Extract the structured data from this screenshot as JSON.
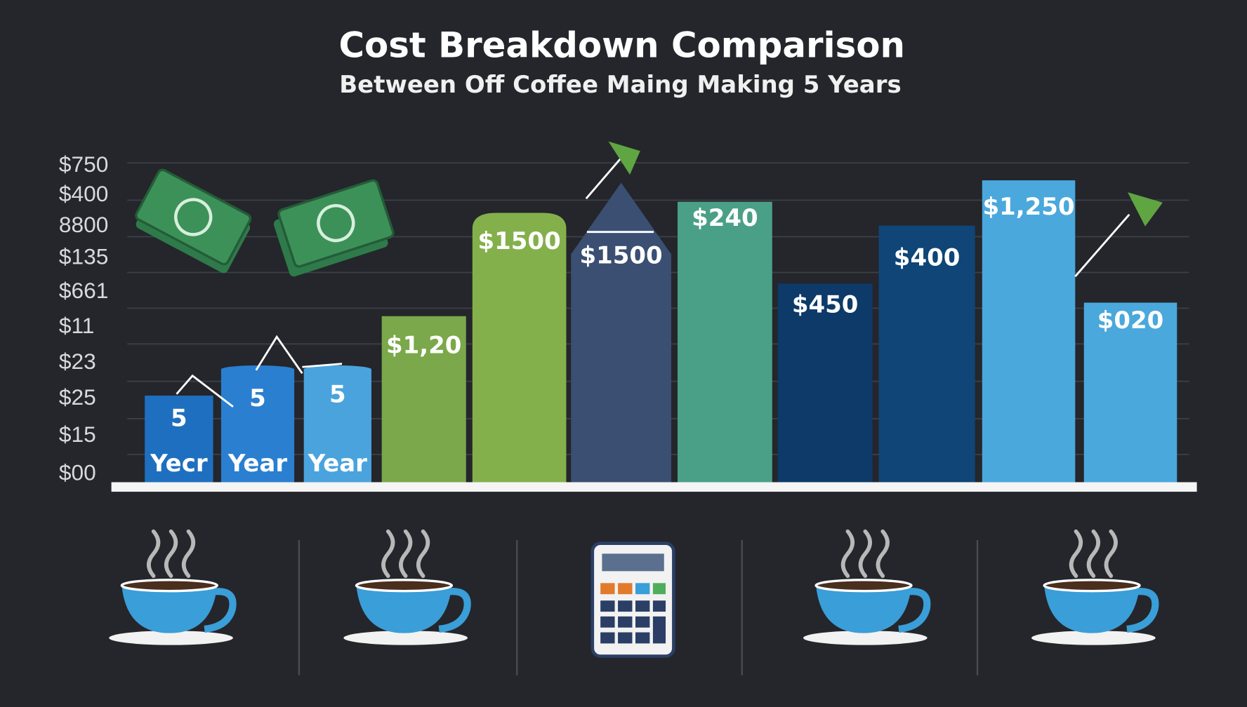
{
  "header": {
    "title": "Cost Breakdown Comparison",
    "subtitle": "Between Off Coffee Maing Making 5 Years"
  },
  "y_axis_labels": [
    "$750",
    "$400",
    "8800",
    "$135",
    "$661",
    "$11",
    "$23",
    "$25",
    "$15",
    "$00"
  ],
  "bars": [
    {
      "label": "5",
      "sublabel": "Yecr"
    },
    {
      "label": "5",
      "sublabel": "Year"
    },
    {
      "label": "5",
      "sublabel": "Year"
    },
    {
      "label": "$1,20"
    },
    {
      "label": "$1500"
    },
    {
      "label": "$1500"
    },
    {
      "label": "$240"
    },
    {
      "label": "$450"
    },
    {
      "label": "$400"
    },
    {
      "label": "$1,250"
    },
    {
      "label": "$020"
    }
  ]
}
